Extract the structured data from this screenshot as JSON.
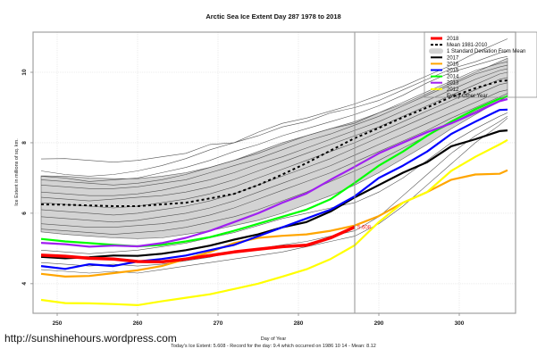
{
  "chart_data": {
    "type": "line",
    "title": "Arctic Sea Ice Extent Day 287 1978 to 2018",
    "xlabel": "Day of Year",
    "ylabel": "Ice Extent in millions of sq. km.",
    "xlim": [
      247,
      307
    ],
    "ylim": [
      3.16,
      11.14
    ],
    "xticks": [
      250,
      260,
      270,
      280,
      290,
      300
    ],
    "yticks": [
      4,
      6,
      8,
      10
    ],
    "grid": true,
    "current_day": 287,
    "current_value_label": "5.608",
    "legend_position": "top-right",
    "legend": [
      {
        "label": "2018",
        "color": "#ff0000",
        "style": "solid-thick"
      },
      {
        "label": "Mean 1981-2010",
        "color": "#000000",
        "style": "dashed"
      },
      {
        "label": "1 Standard Deviation From Mean",
        "color": "#d3d3d3",
        "style": "band"
      },
      {
        "label": "2017",
        "color": "#000000",
        "style": "solid"
      },
      {
        "label": "2016",
        "color": "#ffa500",
        "style": "solid"
      },
      {
        "label": "2015",
        "color": "#0000ff",
        "style": "solid"
      },
      {
        "label": "2014",
        "color": "#00ff00",
        "style": "solid"
      },
      {
        "label": "2013",
        "color": "#a020f0",
        "style": "solid"
      },
      {
        "label": "2012",
        "color": "#ffff00",
        "style": "solid"
      },
      {
        "label": "Every Other Year",
        "color": "#808080",
        "style": "thin"
      }
    ],
    "x": [
      248,
      251,
      254,
      257,
      260,
      263,
      266,
      269,
      272,
      275,
      278,
      281,
      284,
      287,
      290,
      293,
      296,
      299,
      302,
      305,
      306
    ],
    "band": {
      "upper": [
        7.06,
        7.05,
        7.0,
        6.98,
        6.98,
        7.05,
        7.15,
        7.3,
        7.5,
        7.75,
        8.0,
        8.2,
        8.4,
        8.6,
        8.85,
        9.1,
        9.4,
        9.7,
        10.0,
        10.3,
        10.4
      ],
      "lower": [
        5.47,
        5.4,
        5.35,
        5.3,
        5.28,
        5.3,
        5.4,
        5.5,
        5.65,
        5.8,
        6.0,
        6.25,
        6.5,
        6.8,
        7.15,
        7.55,
        7.95,
        8.4,
        8.8,
        9.2,
        9.32
      ]
    },
    "mean": [
      6.25,
      6.24,
      6.22,
      6.2,
      6.2,
      6.25,
      6.3,
      6.42,
      6.55,
      6.8,
      7.1,
      7.42,
      7.78,
      8.13,
      8.42,
      8.72,
      9.0,
      9.3,
      9.55,
      9.75,
      9.77
    ],
    "series": [
      {
        "name": "2018",
        "color": "#ff0000",
        "width": 3.5,
        "end_index": 13,
        "values": [
          4.81,
          4.78,
          4.72,
          4.7,
          4.63,
          4.62,
          4.7,
          4.8,
          4.9,
          4.98,
          5.05,
          5.09,
          5.3,
          5.608
        ]
      },
      {
        "name": "2017",
        "color": "#000000",
        "width": 2.2,
        "values": [
          4.76,
          4.72,
          4.75,
          4.8,
          4.79,
          4.85,
          4.95,
          5.08,
          5.25,
          5.4,
          5.6,
          5.75,
          6.05,
          6.45,
          6.8,
          7.15,
          7.45,
          7.9,
          8.1,
          8.33,
          8.35
        ]
      },
      {
        "name": "2016",
        "color": "#ffa500",
        "width": 2.2,
        "values": [
          4.28,
          4.2,
          4.22,
          4.3,
          4.38,
          4.5,
          4.7,
          4.9,
          5.15,
          5.3,
          5.36,
          5.4,
          5.5,
          5.65,
          5.92,
          6.3,
          6.6,
          6.95,
          7.1,
          7.12,
          7.22
        ]
      },
      {
        "name": "2015",
        "color": "#0000ff",
        "width": 2.2,
        "values": [
          4.5,
          4.42,
          4.55,
          4.5,
          4.63,
          4.7,
          4.8,
          4.95,
          5.1,
          5.35,
          5.6,
          5.85,
          6.1,
          6.48,
          7.0,
          7.35,
          7.75,
          8.25,
          8.6,
          8.93,
          8.94
        ]
      },
      {
        "name": "2014",
        "color": "#00ff00",
        "width": 2.2,
        "values": [
          5.27,
          5.2,
          5.15,
          5.1,
          5.06,
          5.1,
          5.2,
          5.32,
          5.5,
          5.7,
          5.9,
          6.1,
          6.4,
          6.86,
          7.35,
          7.75,
          8.2,
          8.6,
          8.95,
          9.25,
          9.32
        ]
      },
      {
        "name": "2013",
        "color": "#a020f0",
        "width": 2.2,
        "values": [
          5.16,
          5.12,
          5.05,
          5.08,
          5.06,
          5.15,
          5.3,
          5.5,
          5.75,
          6.0,
          6.3,
          6.56,
          6.95,
          7.32,
          7.7,
          8.0,
          8.3,
          8.55,
          8.85,
          9.18,
          9.24
        ]
      },
      {
        "name": "2012",
        "color": "#ffff00",
        "width": 2.2,
        "values": [
          3.54,
          3.45,
          3.44,
          3.42,
          3.39,
          3.5,
          3.6,
          3.7,
          3.85,
          4.0,
          4.2,
          4.41,
          4.7,
          5.09,
          5.75,
          6.3,
          6.6,
          7.2,
          7.6,
          7.95,
          8.08
        ]
      }
    ],
    "every_other_year": [
      [
        7.54,
        7.55,
        7.5,
        7.45,
        7.5,
        7.6,
        7.7,
        7.95,
        8.0,
        8.3,
        8.55,
        8.7,
        8.9,
        9.1,
        9.35,
        9.6,
        9.9,
        10.2,
        10.55,
        10.85,
        10.95
      ],
      [
        7.2,
        7.1,
        7.05,
        7.1,
        7.2,
        7.35,
        7.55,
        7.8,
        8.0,
        8.2,
        8.45,
        8.6,
        8.85,
        9.0,
        9.2,
        9.5,
        9.8,
        10.1,
        10.3,
        10.55,
        10.6
      ],
      [
        7.05,
        7.0,
        6.9,
        6.95,
        7.0,
        7.15,
        7.3,
        7.5,
        7.75,
        7.95,
        8.2,
        8.4,
        8.6,
        8.8,
        9.05,
        9.35,
        9.7,
        10.0,
        10.2,
        10.4,
        10.45
      ],
      [
        6.95,
        6.9,
        6.85,
        6.8,
        6.85,
        6.95,
        7.1,
        7.3,
        7.5,
        7.7,
        7.95,
        8.2,
        8.4,
        8.55,
        8.85,
        9.15,
        9.45,
        9.75,
        10.05,
        10.25,
        10.3
      ],
      [
        6.8,
        6.75,
        6.7,
        6.7,
        6.75,
        6.85,
        6.95,
        7.15,
        7.35,
        7.55,
        7.8,
        8.05,
        8.25,
        8.5,
        8.75,
        9.05,
        9.35,
        9.65,
        9.95,
        10.15,
        10.2
      ],
      [
        6.6,
        6.55,
        6.5,
        6.5,
        6.55,
        6.65,
        6.8,
        6.95,
        7.15,
        7.4,
        7.6,
        7.85,
        8.1,
        8.35,
        8.6,
        8.9,
        9.2,
        9.5,
        9.8,
        10.05,
        10.1
      ],
      [
        6.45,
        6.4,
        6.35,
        6.4,
        6.45,
        6.5,
        6.6,
        6.75,
        6.95,
        7.2,
        7.45,
        7.7,
        7.95,
        8.2,
        8.45,
        8.75,
        9.05,
        9.35,
        9.65,
        9.95,
        10.0
      ],
      [
        6.3,
        6.25,
        6.2,
        6.15,
        6.2,
        6.3,
        6.4,
        6.55,
        6.75,
        7.0,
        7.25,
        7.5,
        7.75,
        8.0,
        8.3,
        8.6,
        8.9,
        9.2,
        9.5,
        9.8,
        9.85
      ],
      [
        6.1,
        6.05,
        6.0,
        5.95,
        6.0,
        6.1,
        6.2,
        6.35,
        6.55,
        6.8,
        7.05,
        7.3,
        7.55,
        7.85,
        8.15,
        8.45,
        8.75,
        9.05,
        9.35,
        9.65,
        9.7
      ],
      [
        5.9,
        5.85,
        5.8,
        5.75,
        5.8,
        5.9,
        6.0,
        6.15,
        6.35,
        6.6,
        6.85,
        7.1,
        7.35,
        7.65,
        7.95,
        8.25,
        8.55,
        8.85,
        9.15,
        9.45,
        9.5
      ],
      [
        5.7,
        5.65,
        5.6,
        5.6,
        5.65,
        5.7,
        5.8,
        5.95,
        6.15,
        6.4,
        6.65,
        6.9,
        7.15,
        7.45,
        7.75,
        8.05,
        8.35,
        8.7,
        9.0,
        9.3,
        9.4
      ],
      [
        5.55,
        5.5,
        5.45,
        5.4,
        5.45,
        5.5,
        5.6,
        5.75,
        5.9,
        6.1,
        6.35,
        6.6,
        6.9,
        7.2,
        7.5,
        7.85,
        8.2,
        8.55,
        8.9,
        9.2,
        9.3
      ],
      [
        4.95,
        4.9,
        4.85,
        4.9,
        4.95,
        5.05,
        5.15,
        5.3,
        5.45,
        5.65,
        5.85,
        6.0,
        6.15,
        6.3,
        6.6,
        7.0,
        7.5,
        8.0,
        8.4,
        8.75,
        8.85
      ],
      [
        4.6,
        4.55,
        4.5,
        4.55,
        4.5,
        4.55,
        4.65,
        4.75,
        4.9,
        5.0,
        5.1,
        5.2,
        5.35,
        5.5,
        5.9,
        6.5,
        7.1,
        7.7,
        8.2,
        8.6,
        8.75
      ],
      [
        4.4,
        4.35,
        4.3,
        4.35,
        4.3,
        4.4,
        4.5,
        4.6,
        4.7,
        4.8,
        4.9,
        5.05,
        5.2,
        5.35,
        5.7,
        6.2,
        6.8,
        7.4,
        8.0,
        8.5,
        8.7
      ]
    ]
  },
  "header": {
    "title": "Arctic Sea Ice Extent Day 287 1978 to 2018"
  },
  "footer": {
    "url": "http://sunshinehours.wordpress.com",
    "summary": "Today's Ice Extent: 5.608  - Record for the day: 9.4 which occurred on 1986 10 14  - Mean: 8.12"
  }
}
